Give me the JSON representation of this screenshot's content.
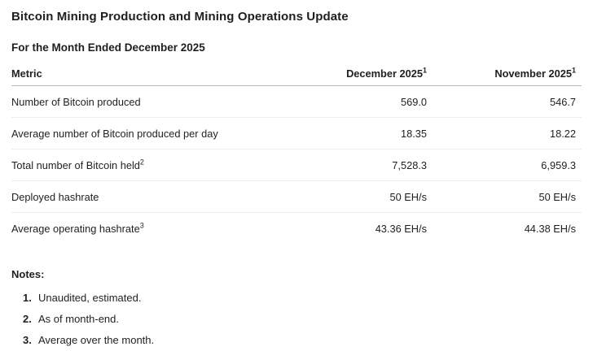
{
  "page": {
    "title": "Bitcoin Mining Production and Mining Operations Update",
    "subtitle": "For the Month Ended December 2025"
  },
  "table": {
    "columns": [
      {
        "label": "Metric",
        "sup": ""
      },
      {
        "label": "December 2025",
        "sup": "1"
      },
      {
        "label": "November 2025",
        "sup": "1"
      }
    ],
    "rows": [
      {
        "metric": "Number of Bitcoin produced",
        "sup": "",
        "december": "569.0",
        "november": "546.7"
      },
      {
        "metric": "Average number of Bitcoin produced per day",
        "sup": "",
        "december": "18.35",
        "november": "18.22"
      },
      {
        "metric": "Total number of Bitcoin held",
        "sup": "2",
        "december": "7,528.3",
        "november": "6,959.3"
      },
      {
        "metric": "Deployed hashrate",
        "sup": "",
        "december": "50 EH/s",
        "november": "50 EH/s"
      },
      {
        "metric": "Average operating hashrate",
        "sup": "3",
        "december": "43.36 EH/s",
        "november": "44.38 EH/s"
      }
    ]
  },
  "notes": {
    "heading": "Notes:",
    "items": [
      {
        "num": "1.",
        "text": "Unaudited, estimated."
      },
      {
        "num": "2.",
        "text": "As of month-end."
      },
      {
        "num": "3.",
        "text": "Average over the month."
      }
    ]
  },
  "colors": {
    "text": "#1f1f1f",
    "header_border": "#b9b9b9",
    "row_border": "#ececec",
    "background": "#ffffff"
  }
}
